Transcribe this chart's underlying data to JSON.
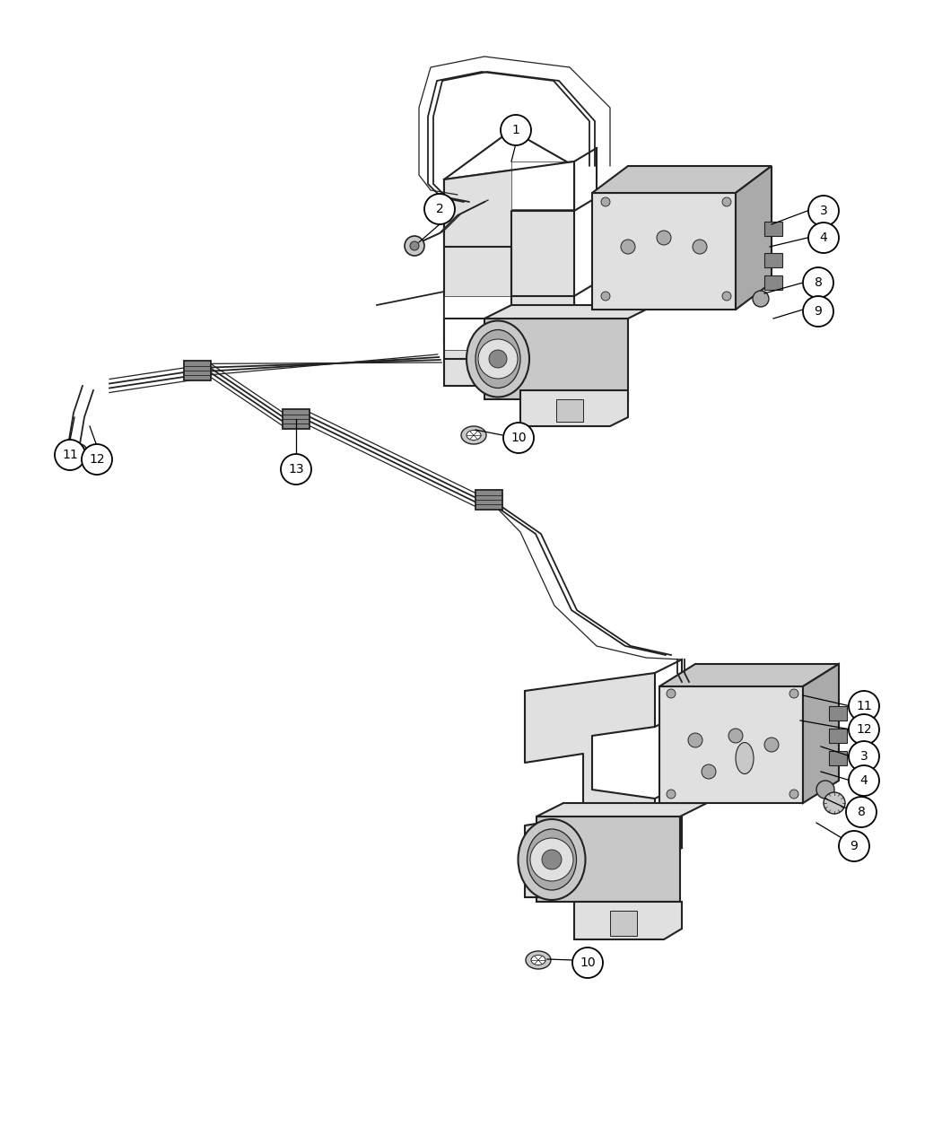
{
  "bg_color": "#ffffff",
  "line_color": "#222222",
  "figsize": [
    10.5,
    12.75
  ],
  "dpi": 100,
  "lw_thick": 2.2,
  "lw_med": 1.5,
  "lw_thin": 0.9,
  "lw_tube": 1.3,
  "gray_light": "#e0e0e0",
  "gray_mid": "#c8c8c8",
  "gray_dark": "#aaaaaa",
  "gray_darker": "#888888"
}
